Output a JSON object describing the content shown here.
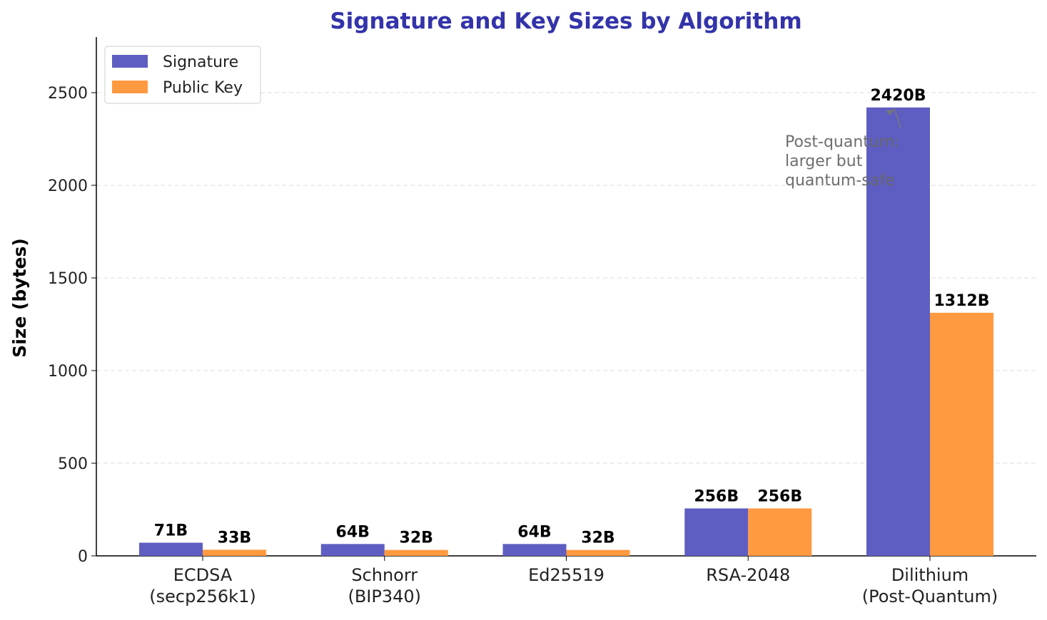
{
  "chart_data": {
    "type": "bar",
    "title": "Signature and Key Sizes by Algorithm",
    "ylabel": "Size (bytes)",
    "categories": [
      "ECDSA\n(secp256k1)",
      "Schnorr\n(BIP340)",
      "Ed25519",
      "RSA-2048",
      "Dilithium\n(Post-Quantum)"
    ],
    "series": [
      {
        "name": "Signature",
        "color": "#5e5ec2",
        "values": [
          71,
          64,
          64,
          256,
          2420
        ],
        "value_labels": [
          "71B",
          "64B",
          "64B",
          "256B",
          "2420B"
        ]
      },
      {
        "name": "Public Key",
        "color": "#ff9a40",
        "values": [
          33,
          32,
          32,
          256,
          1312
        ],
        "value_labels": [
          "33B",
          "32B",
          "32B",
          "256B",
          "1312B"
        ]
      }
    ],
    "ylim": [
      0,
      2800
    ],
    "yticks": [
      0,
      500,
      1000,
      1500,
      2000,
      2500
    ],
    "grid": true,
    "legend": "upper left",
    "annotation": {
      "text": "Post-quantum:\nlarger but\nquantum-safe",
      "series": 0,
      "index": 4
    }
  }
}
